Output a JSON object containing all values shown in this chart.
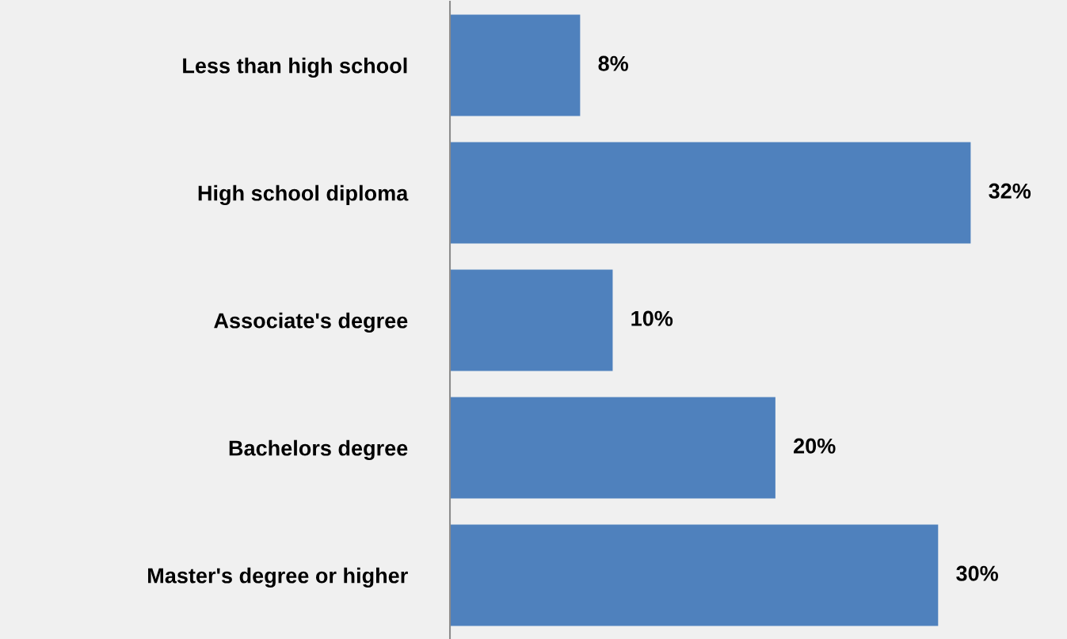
{
  "chart_data": {
    "type": "bar",
    "orientation": "horizontal",
    "categories": [
      "Less than high school",
      "High school diploma",
      "Associate's degree",
      "Bachelors degree",
      "Master's degree or higher"
    ],
    "values": [
      8,
      32,
      10,
      20,
      30
    ],
    "value_labels": [
      "8%",
      "32%",
      "10%",
      "20%",
      "30%"
    ],
    "color": "#4f81bd",
    "grid": false,
    "legend": false
  }
}
